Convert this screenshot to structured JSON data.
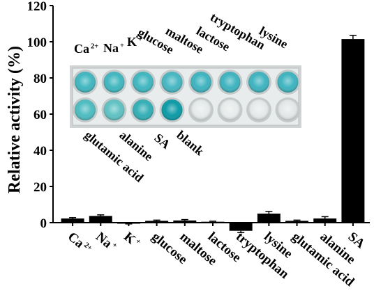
{
  "chart_data": {
    "type": "bar",
    "ylabel": "Relative activity (%)",
    "ylim": [
      0,
      120
    ],
    "yticks": [
      0,
      20,
      40,
      60,
      80,
      100,
      120
    ],
    "grid": false,
    "categories": [
      {
        "base": "Ca",
        "sup": "2+"
      },
      {
        "base": "Na",
        "sup": "+"
      },
      {
        "base": "K",
        "sup": "+"
      },
      {
        "base": "glucose",
        "sup": ""
      },
      {
        "base": "maltose",
        "sup": ""
      },
      {
        "base": "lactose",
        "sup": ""
      },
      {
        "base": "tryptophan",
        "sup": ""
      },
      {
        "base": "lysine",
        "sup": ""
      },
      {
        "base": "glutamic acid",
        "sup": ""
      },
      {
        "base": "alanine",
        "sup": ""
      },
      {
        "base": "SA",
        "sup": ""
      }
    ],
    "values": [
      2.3,
      3.7,
      -0.4,
      1.0,
      1.2,
      0.5,
      -4.5,
      5.0,
      1.0,
      2.3,
      101.5
    ],
    "errors": [
      0.5,
      0.6,
      0.3,
      0.4,
      0.5,
      0.3,
      1.0,
      1.2,
      0.4,
      1.0,
      2.0
    ],
    "bar_color": "#000000",
    "inset": {
      "type": "photo",
      "description_labels_top": [
        {
          "base": "Ca",
          "sup": "2+"
        },
        {
          "base": "Na",
          "sup": "+"
        },
        {
          "base": "K",
          "sup": "+"
        },
        {
          "base": "glucose",
          "sup": ""
        },
        {
          "base": "maltose",
          "sup": ""
        },
        {
          "base": "lactose",
          "sup": ""
        },
        {
          "base": "tryptophan",
          "sup": ""
        },
        {
          "base": "lysine",
          "sup": ""
        }
      ],
      "labels_bottom": [
        "glutamic acid",
        "alanine",
        "SA",
        "blank"
      ],
      "well_colors": {
        "row1": [
          "#3fb6bf",
          "#3fb6bf",
          "#3fb6bf",
          "#45b6c1",
          "#3db3bf",
          "#3db3bf",
          "#3db3bf",
          "#3db3bf"
        ],
        "row2": [
          "#4dbcc0",
          "#5fc2c3",
          "#32aeb5",
          "#0b9aa6",
          "#e6eaea",
          "#e8ebeb",
          "#e6e9ea",
          "#e4e7e8"
        ]
      }
    }
  }
}
